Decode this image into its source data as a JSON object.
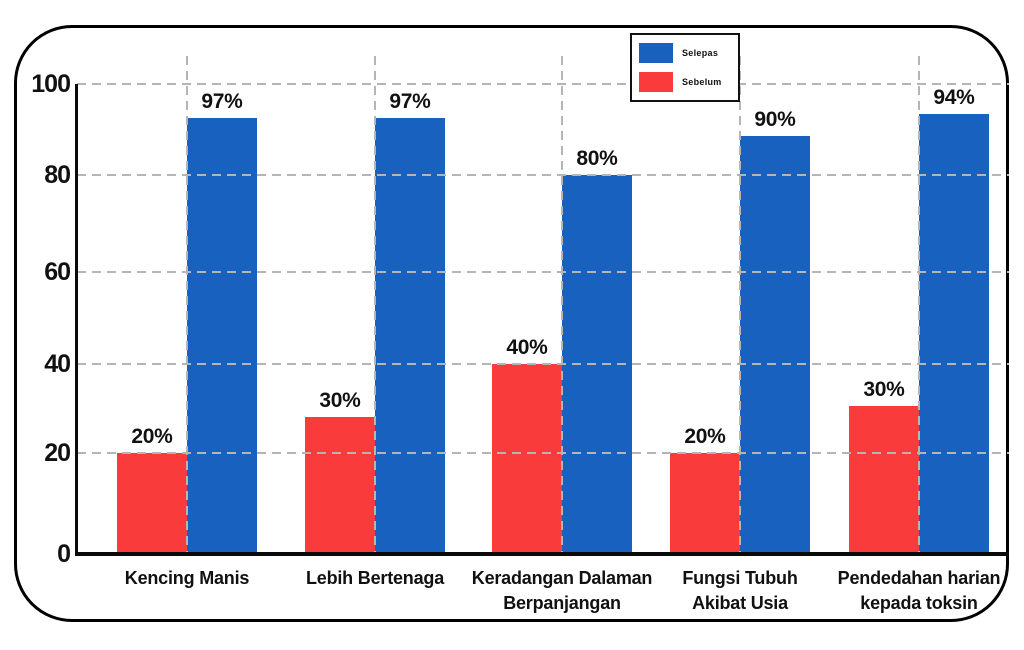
{
  "chart_data": {
    "type": "bar",
    "title": "",
    "xlabel": "",
    "ylabel": "",
    "categories": [
      "Kencing Manis",
      "Lebih Bertenaga",
      "Keradangan Dalaman\nBerpanjangan",
      "Fungsi Tubuh\nAkibat Usia",
      "Pendedahan harian\nkepada toksin"
    ],
    "series": [
      {
        "name": "Sebelum",
        "color": "#f93b3b",
        "side": "left",
        "values": [
          20,
          30,
          40,
          20,
          30
        ],
        "labels": [
          "20%",
          "30%",
          "40%",
          "20%",
          "30%"
        ],
        "drawn_values": [
          20,
          28,
          40,
          20,
          30.5
        ]
      },
      {
        "name": "Selepas",
        "color": "#1961be",
        "side": "right",
        "values": [
          97,
          97,
          80,
          90,
          94
        ],
        "labels": [
          "97%",
          "97%",
          "80%",
          "90%",
          "94%"
        ],
        "drawn_values": [
          92.5,
          92.5,
          80,
          88.5,
          93.5
        ]
      }
    ],
    "y_ticks": [
      0,
      20,
      40,
      60,
      80,
      100
    ],
    "ylim": [
      0,
      100
    ],
    "grid": {
      "horizontal": true,
      "vertical": true,
      "style": "dashed",
      "color": "#b5b5b5"
    },
    "legend": {
      "position": "top-center",
      "entries": [
        {
          "label": "Selepas",
          "color": "#1961be"
        },
        {
          "label": "Sebelum",
          "color": "#f93b3b"
        }
      ]
    }
  }
}
